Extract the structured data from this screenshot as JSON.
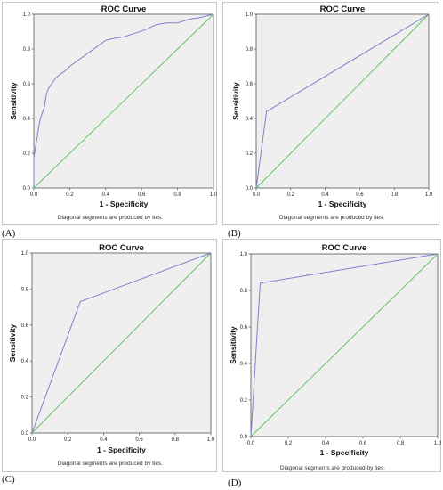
{
  "panels": [
    {
      "letter": "(A)"
    },
    {
      "letter": "(B)"
    },
    {
      "letter": "(C)"
    },
    {
      "letter": "(D)"
    }
  ],
  "colors": {
    "curve": "#7b83c8",
    "diagonal": "#5bc25b",
    "plot_bg": "#efefef",
    "axis": "#555555"
  },
  "chart_data": [
    {
      "type": "line",
      "title": "ROC Curve",
      "xlabel": "1 - Specificity",
      "ylabel": "Sensitivity",
      "note": "Diagonal segments are produced by ties.",
      "xlim": [
        0,
        1
      ],
      "ylim": [
        0,
        1
      ],
      "xticks": [
        "0.0",
        "0.2",
        "0.4",
        "0.6",
        "0.8",
        "1.0"
      ],
      "yticks": [
        "0.0",
        "0.2",
        "0.4",
        "0.6",
        "0.8",
        "1.0"
      ],
      "grid": false,
      "series": [
        {
          "values": [
            [
              0,
              0
            ],
            [
              0,
              0.17
            ],
            [
              0.01,
              0.24
            ],
            [
              0.02,
              0.3
            ],
            [
              0.03,
              0.37
            ],
            [
              0.04,
              0.41
            ],
            [
              0.05,
              0.44
            ],
            [
              0.06,
              0.47
            ],
            [
              0.07,
              0.54
            ],
            [
              0.08,
              0.57
            ],
            [
              0.1,
              0.6
            ],
            [
              0.12,
              0.63
            ],
            [
              0.14,
              0.65
            ],
            [
              0.17,
              0.67
            ],
            [
              0.2,
              0.7
            ],
            [
              0.24,
              0.73
            ],
            [
              0.28,
              0.76
            ],
            [
              0.32,
              0.79
            ],
            [
              0.36,
              0.82
            ],
            [
              0.4,
              0.85
            ],
            [
              0.44,
              0.86
            ],
            [
              0.5,
              0.87
            ],
            [
              0.56,
              0.89
            ],
            [
              0.62,
              0.91
            ],
            [
              0.68,
              0.94
            ],
            [
              0.74,
              0.95
            ],
            [
              0.8,
              0.95
            ],
            [
              0.86,
              0.97
            ],
            [
              0.92,
              0.98
            ],
            [
              1,
              1
            ]
          ]
        },
        {
          "values": [
            [
              0,
              0
            ],
            [
              1,
              1
            ]
          ]
        }
      ]
    },
    {
      "type": "line",
      "title": "ROC Curve",
      "xlabel": "1 - Specificity",
      "ylabel": "Sensitivity",
      "note": "Diagonal segments are produced by ties.",
      "xlim": [
        0,
        1
      ],
      "ylim": [
        0,
        1
      ],
      "xticks": [
        "0.0",
        "0.2",
        "0.4",
        "0.6",
        "0.8",
        "1.0"
      ],
      "yticks": [
        "0.0",
        "0.2",
        "0.4",
        "0.6",
        "0.8",
        "1.0"
      ],
      "grid": false,
      "series": [
        {
          "values": [
            [
              0,
              0
            ],
            [
              0.06,
              0.44
            ],
            [
              1,
              1
            ]
          ]
        },
        {
          "values": [
            [
              0,
              0
            ],
            [
              1,
              1
            ]
          ]
        }
      ]
    },
    {
      "type": "line",
      "title": "ROC Curve",
      "xlabel": "1 - Specificity",
      "ylabel": "Sensitivity",
      "note": "Diagonal segments are produced by ties.",
      "xlim": [
        0,
        1
      ],
      "ylim": [
        0,
        1
      ],
      "xticks": [
        "0.0",
        "0.2",
        "0.4",
        "0.6",
        "0.8",
        "1.0"
      ],
      "yticks": [
        "0.0",
        "0.2",
        "0.4",
        "0.6",
        "0.8",
        "1.0"
      ],
      "grid": false,
      "series": [
        {
          "values": [
            [
              0,
              0
            ],
            [
              0.27,
              0.73
            ],
            [
              1,
              1
            ]
          ]
        },
        {
          "values": [
            [
              0,
              0
            ],
            [
              1,
              1
            ]
          ]
        }
      ]
    },
    {
      "type": "line",
      "title": "ROC Curve",
      "xlabel": "1 - Specificity",
      "ylabel": "Sensitivity",
      "note": "Diagonal segments are produced by ties.",
      "xlim": [
        0,
        1
      ],
      "ylim": [
        0,
        1
      ],
      "xticks": [
        "0.0",
        "0.2",
        "0.4",
        "0.6",
        "0.8",
        "1.0"
      ],
      "yticks": [
        "0.0",
        "0.2",
        "0.4",
        "0.6",
        "0.8",
        "1.0"
      ],
      "grid": false,
      "series": [
        {
          "values": [
            [
              0,
              0
            ],
            [
              0.05,
              0.84
            ],
            [
              1,
              1
            ]
          ]
        },
        {
          "values": [
            [
              0,
              0
            ],
            [
              1,
              1
            ]
          ]
        }
      ]
    }
  ]
}
